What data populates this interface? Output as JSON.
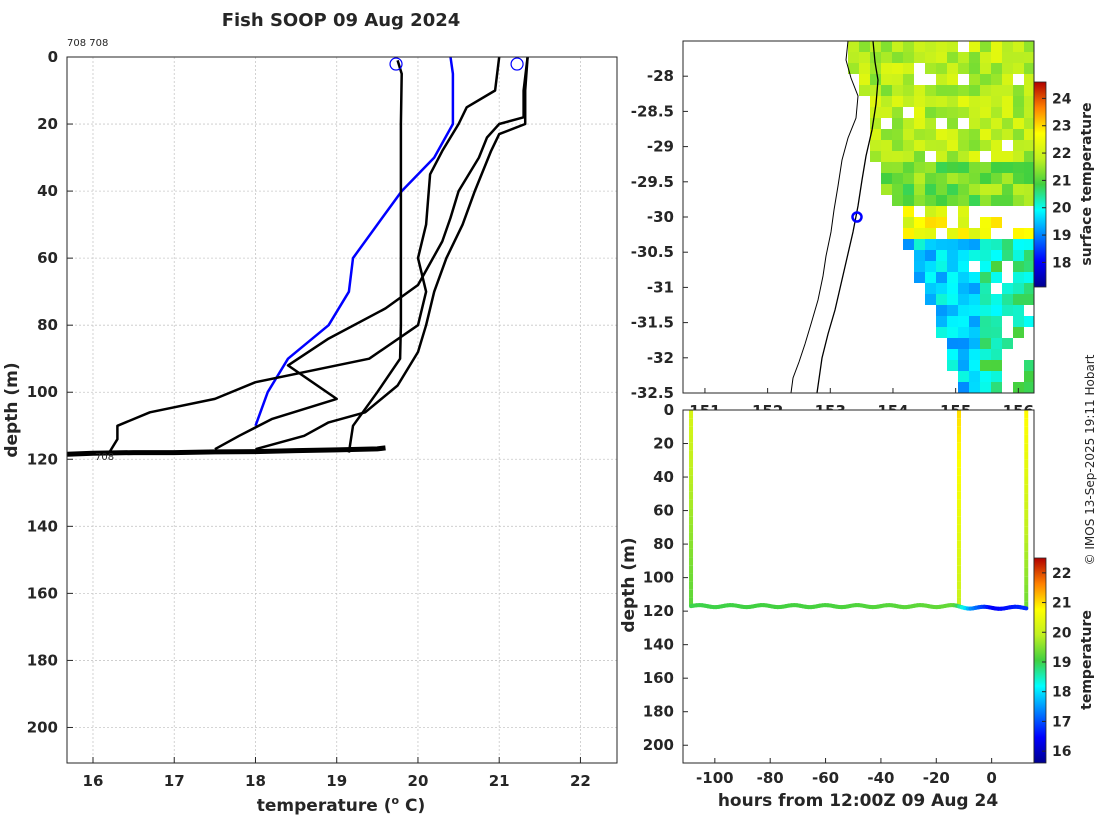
{
  "title": "Fish SOOP 09 Aug 2024",
  "platform_label": "708 708",
  "profile_bottom_label": "708",
  "credit": "© IMOS 13-Sep-2025 19:11 Hobart",
  "colors": {
    "profile_black": "#000000",
    "profile_blue": "#0000ff",
    "marker": "#0000ff"
  },
  "profile_plot": {
    "xlabel": "temperature (",
    "xlabel_sup": "o",
    "xlabel_end": " C)",
    "ylabel": "depth (m)",
    "xlim": [
      15.68,
      22.45
    ],
    "ylim": [
      210.6,
      0
    ],
    "xticks": [
      16,
      17,
      18,
      19,
      20,
      21,
      22
    ],
    "yticks": [
      0,
      20,
      40,
      60,
      80,
      100,
      120,
      140,
      160,
      180,
      200
    ]
  },
  "map_plot": {
    "colorbar_label": "surface temperature",
    "xlim": [
      150.65,
      156.25
    ],
    "ylim": [
      -32.5,
      -27.5
    ],
    "xticks": [
      "151",
      "152",
      "153",
      "154",
      "155",
      "156"
    ],
    "yticks": [
      "-28",
      "-28.5",
      "-29",
      "-29.5",
      "-30",
      "-30.5",
      "-31",
      "-31.5",
      "-32",
      "-32.5"
    ],
    "colorbar_range": [
      17.1,
      24.6
    ],
    "colorbar_ticks": [
      "18",
      "19",
      "20",
      "21",
      "22",
      "23",
      "24"
    ],
    "current_position": {
      "lon": 153.5,
      "lat": -30.0
    }
  },
  "track_plot": {
    "xlabel": "hours from 12:00Z 09 Aug 24",
    "ylabel": "depth (m)",
    "colorbar_label": "temperature",
    "xlim": [
      -111.5,
      15.3
    ],
    "ylim": [
      210.6,
      0
    ],
    "xticks": [
      "-100",
      "-80",
      "-60",
      "-40",
      "-20",
      "0"
    ],
    "yticks": [
      "0",
      "20",
      "40",
      "60",
      "80",
      "100",
      "120",
      "140",
      "160",
      "180",
      "200"
    ],
    "colorbar_range": [
      15.6,
      22.5
    ],
    "colorbar_ticks": [
      "16",
      "17",
      "18",
      "19",
      "20",
      "21",
      "22"
    ]
  },
  "chart_data": [
    {
      "type": "line",
      "title": "Fish SOOP 09 Aug 2024",
      "xlabel": "temperature (o C)",
      "ylabel": "depth (m)",
      "xlim": [
        15.68,
        22.45
      ],
      "ylim": [
        210.6,
        0
      ],
      "grid": true,
      "series": [
        {
          "name": "profile-1",
          "color": "#0000ff",
          "points": [
            [
              20.4,
              0
            ],
            [
              20.43,
              5
            ],
            [
              20.43,
              20
            ],
            [
              20.2,
              30
            ],
            [
              19.8,
              40
            ],
            [
              19.5,
              50
            ],
            [
              19.2,
              60
            ],
            [
              19.15,
              70
            ],
            [
              18.9,
              80
            ],
            [
              18.4,
              90
            ],
            [
              18.15,
              100
            ],
            [
              18.0,
              110
            ]
          ]
        },
        {
          "name": "profile-2",
          "color": "#000000",
          "points": [
            [
              19.75,
              1
            ],
            [
              19.8,
              5
            ],
            [
              19.79,
              20
            ],
            [
              19.79,
              40
            ],
            [
              19.79,
              60
            ],
            [
              19.79,
              80
            ],
            [
              19.78,
              90
            ],
            [
              19.5,
              100
            ],
            [
              19.2,
              110
            ],
            [
              19.15,
              118
            ]
          ]
        },
        {
          "name": "profile-3",
          "color": "#000000",
          "points": [
            [
              21.0,
              0
            ],
            [
              20.95,
              10
            ],
            [
              20.6,
              15
            ],
            [
              20.5,
              20
            ],
            [
              20.3,
              28
            ],
            [
              20.15,
              35
            ],
            [
              20.1,
              50
            ],
            [
              20.0,
              60
            ],
            [
              20.1,
              70
            ],
            [
              20.0,
              80
            ],
            [
              19.4,
              90
            ],
            [
              18.0,
              97
            ],
            [
              17.5,
              102
            ],
            [
              16.7,
              106
            ],
            [
              16.3,
              110
            ],
            [
              16.3,
              114
            ],
            [
              16.2,
              118
            ]
          ]
        },
        {
          "name": "profile-4",
          "color": "#000000",
          "points": [
            [
              21.35,
              0
            ],
            [
              21.3,
              10
            ],
            [
              21.3,
              18
            ],
            [
              21.0,
              20
            ],
            [
              20.85,
              24
            ],
            [
              20.75,
              30
            ],
            [
              20.5,
              40
            ],
            [
              20.4,
              48
            ],
            [
              20.3,
              55
            ],
            [
              20.0,
              68
            ],
            [
              19.6,
              75
            ],
            [
              18.9,
              84
            ],
            [
              18.4,
              92
            ],
            [
              19.0,
              102
            ],
            [
              18.2,
              108
            ],
            [
              17.8,
              113
            ],
            [
              17.5,
              117
            ]
          ]
        },
        {
          "name": "profile-5",
          "color": "#000000",
          "points": [
            [
              21.35,
              0
            ],
            [
              21.32,
              10
            ],
            [
              21.32,
              20
            ],
            [
              21.0,
              23
            ],
            [
              20.9,
              28
            ],
            [
              20.7,
              40
            ],
            [
              20.55,
              50
            ],
            [
              20.35,
              60
            ],
            [
              20.2,
              70
            ],
            [
              20.1,
              80
            ],
            [
              20.0,
              88
            ],
            [
              19.75,
              98
            ],
            [
              19.35,
              106
            ],
            [
              18.9,
              109
            ],
            [
              18.6,
              113
            ],
            [
              18.0,
              117
            ]
          ]
        },
        {
          "name": "bottom-trace",
          "color": "#000000",
          "points": [
            [
              15.68,
              118.5
            ],
            [
              16.0,
              118.2
            ],
            [
              16.5,
              118
            ],
            [
              17.0,
              118
            ],
            [
              17.5,
              117.8
            ],
            [
              18.0,
              117.7
            ],
            [
              18.5,
              117.4
            ],
            [
              19.0,
              117.2
            ],
            [
              19.5,
              116.9
            ],
            [
              19.6,
              116.6
            ]
          ]
        }
      ],
      "markers": [
        {
          "x": 19.73,
          "y": 1.2
        },
        {
          "x": 21.22,
          "y": 1.2
        }
      ]
    },
    {
      "type": "heatmap",
      "title": "",
      "xlabel": "",
      "ylabel": "",
      "colorbar_label": "surface temperature",
      "xlim": [
        150.65,
        156.25
      ],
      "ylim": [
        -32.5,
        -27.5
      ],
      "colorbar_range": [
        17.1,
        24.6
      ],
      "regions": [
        {
          "area": "north (lat > -29.2)",
          "value": 21.8
        },
        {
          "area": "-29.2 to -29.8",
          "value": 21.3
        },
        {
          "area": "coastal eddy near -30",
          "value": 20.6
        },
        {
          "area": "-29.8 to -30.2 offshore",
          "value": 22.5
        },
        {
          "area": "south-west (lat < -30.3)",
          "value": 19.6
        },
        {
          "area": "cold core near 154E -31.2",
          "value": 18.5
        }
      ]
    },
    {
      "type": "heatmap",
      "title": "",
      "xlabel": "hours from 12:00Z 09 Aug 24",
      "ylabel": "depth (m)",
      "colorbar_label": "temperature",
      "xlim": [
        -111.5,
        15.3
      ],
      "ylim": [
        210.6,
        0
      ],
      "colorbar_range": [
        15.6,
        22.5
      ],
      "casts": [
        {
          "hour": -108.6,
          "top": 0,
          "bottom": 117,
          "temp_top": 20.2,
          "temp_bottom": 19.2
        },
        {
          "hour": -11.8,
          "top": 0,
          "bottom": 117,
          "temp_top": 21.0,
          "temp_bottom": 20.0
        },
        {
          "hour": 12.5,
          "top": 0,
          "bottom": 119,
          "temp_top": 20.8,
          "temp_bottom": 19.3
        }
      ],
      "seabed_track": [
        {
          "hour": -108.6,
          "depth": 117,
          "temp": 19.0
        },
        {
          "hour": -60,
          "depth": 117,
          "temp": 19.1
        },
        {
          "hour": -14,
          "depth": 117,
          "temp": 19.3
        },
        {
          "hour": -8,
          "depth": 118,
          "temp": 17.5
        },
        {
          "hour": 0,
          "depth": 118,
          "temp": 16.4
        },
        {
          "hour": 12.5,
          "depth": 118,
          "temp": 16.8
        }
      ]
    }
  ]
}
